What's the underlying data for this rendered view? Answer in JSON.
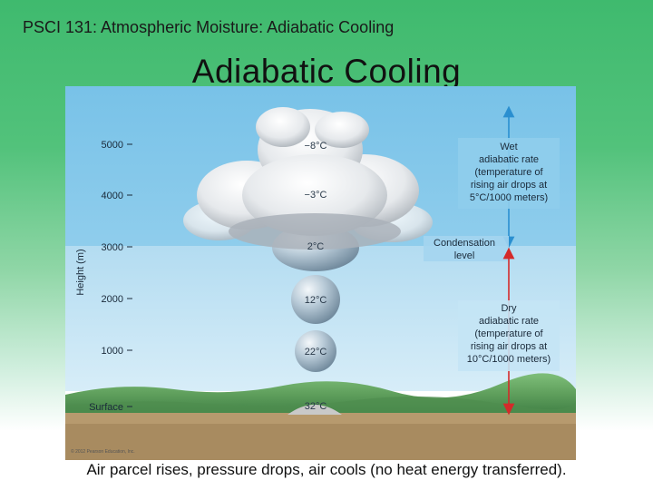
{
  "header": {
    "course": "PSCI 131: Atmospheric Moisture: Adiabatic Cooling"
  },
  "slide": {
    "title": "Adiabatic Cooling"
  },
  "figure": {
    "y_axis_label": "Height (m)",
    "height_ticks": [
      "5000",
      "4000",
      "3000",
      "2000",
      "1000",
      "Surface"
    ],
    "parcel_temperatures": [
      "−8°C",
      "−3°C",
      "2°C",
      "12°C",
      "22°C",
      "32°C"
    ],
    "wet_rate_lines": [
      "Wet",
      "adiabatic rate",
      "(temperature of",
      "rising air drops at",
      "5°C/1000 meters)"
    ],
    "condensation_lines": [
      "Condensation",
      "level"
    ],
    "dry_rate_lines": [
      "Dry",
      "adiabatic rate",
      "(temperature of",
      "rising air drops at",
      "10°C/1000 meters)"
    ],
    "copyright": "© 2012 Pearson Education, Inc.",
    "colors": {
      "sky_upper": "#7fc6ea",
      "sky_lower": "#b9e0f3",
      "wet_arrow": "#2a8fd0",
      "dry_arrow": "#d42a2a"
    }
  },
  "caption": "Air parcel rises, pressure drops, air cools (no heat energy transferred)."
}
